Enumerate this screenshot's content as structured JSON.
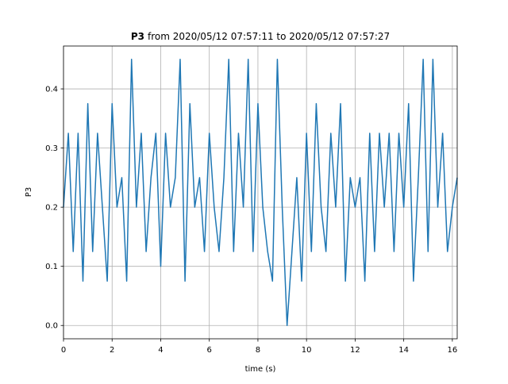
{
  "chart_data": {
    "type": "line",
    "title": {
      "name": "P3",
      "text": "from 2020/05/12 07:57:11 to 2020/05/12 07:57:27"
    },
    "xlabel": "time (s)",
    "ylabel": "P3",
    "x": [
      0,
      0.2,
      0.4,
      0.6,
      0.8,
      1,
      1.2,
      1.4,
      1.6,
      1.8,
      2,
      2.2,
      2.4,
      2.6,
      2.8,
      3,
      3.2,
      3.4,
      3.6,
      3.8,
      4,
      4.2,
      4.4,
      4.6,
      4.8,
      5,
      5.2,
      5.4,
      5.6,
      5.8,
      6,
      6.2,
      6.4,
      6.6,
      6.8,
      7,
      7.2,
      7.4,
      7.6,
      7.8,
      8,
      8.2,
      8.4,
      8.6,
      8.8,
      9,
      9.2,
      9.4,
      9.6,
      9.8,
      10,
      10.2,
      10.4,
      10.6,
      10.8,
      11,
      11.2,
      11.4,
      11.6,
      11.8,
      12,
      12.2,
      12.4,
      12.6,
      12.8,
      13,
      13.2,
      13.4,
      13.6,
      13.8,
      14,
      14.2,
      14.4,
      14.6,
      14.8,
      15,
      15.2,
      15.4,
      15.6,
      15.8,
      16,
      16.2
    ],
    "series": [
      {
        "name": "P3",
        "color": "#1f77b4",
        "values": [
          0.2,
          0.325,
          0.125,
          0.325,
          0.075,
          0.375,
          0.125,
          0.325,
          0.2,
          0.075,
          0.375,
          0.2,
          0.25,
          0.075,
          0.45,
          0.2,
          0.325,
          0.125,
          0.25,
          0.325,
          0.1,
          0.325,
          0.2,
          0.25,
          0.45,
          0.075,
          0.375,
          0.2,
          0.25,
          0.125,
          0.325,
          0.2,
          0.125,
          0.25,
          0.45,
          0.125,
          0.325,
          0.2,
          0.45,
          0.125,
          0.375,
          0.2,
          0.125,
          0.075,
          0.45,
          0.2,
          0,
          0.125,
          0.25,
          0.075,
          0.325,
          0.125,
          0.375,
          0.2,
          0.125,
          0.325,
          0.2,
          0.375,
          0.075,
          0.25,
          0.2,
          0.25,
          0.075,
          0.325,
          0.125,
          0.325,
          0.2,
          0.325,
          0.125,
          0.325,
          0.2,
          0.375,
          0.075,
          0.25,
          0.45,
          0.125,
          0.45,
          0.2,
          0.325,
          0.125,
          0.2,
          0.25
        ]
      }
    ],
    "xlim": [
      0,
      16.2
    ],
    "ylim": [
      -0.0225,
      0.4725
    ],
    "xticks": [
      0,
      2,
      4,
      6,
      8,
      10,
      12,
      14,
      16
    ],
    "yticks": [
      {
        "value": 0,
        "label": "0.0"
      },
      0.1,
      0.2,
      0.3,
      0.4
    ],
    "grid": true
  }
}
